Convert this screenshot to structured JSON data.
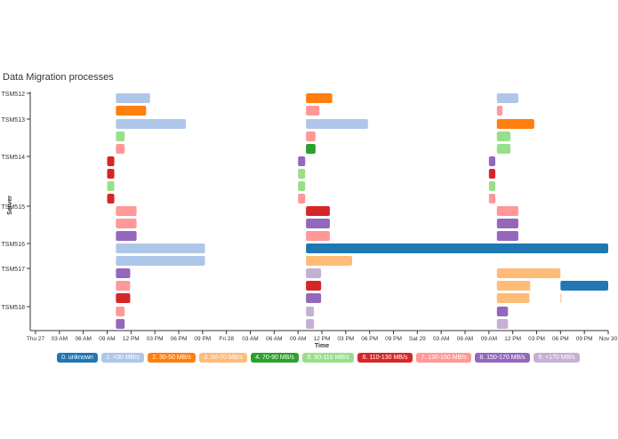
{
  "title": "Data Migration processes",
  "chart_data": {
    "type": "gantt",
    "title": "Data Migration processes",
    "xlabel": "Time",
    "ylabel": "Server",
    "x_ticks": [
      "Thu 27",
      "03 AM",
      "06 AM",
      "09 AM",
      "12 PM",
      "03 PM",
      "06 PM",
      "09 PM",
      "Fri 28",
      "03 AM",
      "06 AM",
      "09 AM",
      "12 PM",
      "03 PM",
      "06 PM",
      "09 PM",
      "Sat 29",
      "03 AM",
      "06 AM",
      "09 AM",
      "12 PM",
      "03 PM",
      "06 PM",
      "09 PM",
      "Nov 30"
    ],
    "x_range_hours": [
      0,
      72
    ],
    "servers": [
      "TSM512",
      "TSM513",
      "TSM514",
      "TSM515",
      "TSM516",
      "TSM517",
      "TSM518"
    ],
    "legend": [
      {
        "label": "0. unknown",
        "color": "#1f77b4"
      },
      {
        "label": "1. <30 MB/s",
        "color": "#aec7e8"
      },
      {
        "label": "2. 30-50 MB/s",
        "color": "#ff7f0e"
      },
      {
        "label": "3. 50-70 MB/s",
        "color": "#ffbb78"
      },
      {
        "label": "4. 70-90 MB/s",
        "color": "#2ca02c"
      },
      {
        "label": "5. 90-110 MB/s",
        "color": "#98df8a"
      },
      {
        "label": "6. 110-130 MB/s",
        "color": "#d62728"
      },
      {
        "label": "7. 130-150 MB/s",
        "color": "#ff9896"
      },
      {
        "label": "8. 150-170 MB/s",
        "color": "#9467bd"
      },
      {
        "label": "9. +170 MB/s",
        "color": "#c5b0d5"
      }
    ],
    "tasks": [
      {
        "server": "TSM512",
        "lane": 0,
        "start": 10.1,
        "end": 14.4,
        "cat": 1
      },
      {
        "server": "TSM512",
        "lane": 1,
        "start": 10.1,
        "end": 13.9,
        "cat": 2
      },
      {
        "server": "TSM512",
        "lane": 0,
        "start": 34.0,
        "end": 37.3,
        "cat": 2
      },
      {
        "server": "TSM512",
        "lane": 1,
        "start": 34.0,
        "end": 35.7,
        "cat": 7
      },
      {
        "server": "TSM512",
        "lane": 0,
        "start": 58.0,
        "end": 60.7,
        "cat": 1
      },
      {
        "server": "TSM512",
        "lane": 1,
        "start": 58.0,
        "end": 58.7,
        "cat": 7
      },
      {
        "server": "TSM513",
        "lane": 0,
        "start": 10.1,
        "end": 18.9,
        "cat": 1
      },
      {
        "server": "TSM513",
        "lane": 1,
        "start": 10.1,
        "end": 11.2,
        "cat": 5
      },
      {
        "server": "TSM513",
        "lane": 2,
        "start": 10.1,
        "end": 11.2,
        "cat": 7
      },
      {
        "server": "TSM513",
        "lane": 0,
        "start": 34.0,
        "end": 41.8,
        "cat": 1
      },
      {
        "server": "TSM513",
        "lane": 1,
        "start": 34.0,
        "end": 35.2,
        "cat": 7
      },
      {
        "server": "TSM513",
        "lane": 2,
        "start": 34.0,
        "end": 35.2,
        "cat": 4
      },
      {
        "server": "TSM513",
        "lane": 0,
        "start": 58.0,
        "end": 62.7,
        "cat": 2
      },
      {
        "server": "TSM513",
        "lane": 1,
        "start": 58.0,
        "end": 59.7,
        "cat": 5
      },
      {
        "server": "TSM513",
        "lane": 2,
        "start": 58.0,
        "end": 59.7,
        "cat": 5
      },
      {
        "server": "TSM514",
        "lane": 0,
        "start": 9.0,
        "end": 9.9,
        "cat": 6
      },
      {
        "server": "TSM514",
        "lane": 1,
        "start": 9.0,
        "end": 9.9,
        "cat": 6
      },
      {
        "server": "TSM514",
        "lane": 2,
        "start": 9.0,
        "end": 9.9,
        "cat": 5
      },
      {
        "server": "TSM514",
        "lane": 3,
        "start": 9.0,
        "end": 9.9,
        "cat": 6
      },
      {
        "server": "TSM514",
        "lane": 0,
        "start": 33.0,
        "end": 33.9,
        "cat": 8
      },
      {
        "server": "TSM514",
        "lane": 1,
        "start": 33.0,
        "end": 33.9,
        "cat": 5
      },
      {
        "server": "TSM514",
        "lane": 2,
        "start": 33.0,
        "end": 33.9,
        "cat": 5
      },
      {
        "server": "TSM514",
        "lane": 3,
        "start": 33.0,
        "end": 33.9,
        "cat": 7
      },
      {
        "server": "TSM514",
        "lane": 0,
        "start": 57.0,
        "end": 57.8,
        "cat": 8
      },
      {
        "server": "TSM514",
        "lane": 1,
        "start": 57.0,
        "end": 57.8,
        "cat": 6
      },
      {
        "server": "TSM514",
        "lane": 2,
        "start": 57.0,
        "end": 57.8,
        "cat": 5
      },
      {
        "server": "TSM514",
        "lane": 3,
        "start": 57.0,
        "end": 57.8,
        "cat": 7
      },
      {
        "server": "TSM515",
        "lane": 0,
        "start": 10.1,
        "end": 12.7,
        "cat": 7
      },
      {
        "server": "TSM515",
        "lane": 1,
        "start": 10.1,
        "end": 12.7,
        "cat": 7
      },
      {
        "server": "TSM515",
        "lane": 2,
        "start": 10.1,
        "end": 12.7,
        "cat": 8
      },
      {
        "server": "TSM515",
        "lane": 0,
        "start": 34.0,
        "end": 37.0,
        "cat": 6
      },
      {
        "server": "TSM515",
        "lane": 1,
        "start": 34.0,
        "end": 37.0,
        "cat": 8
      },
      {
        "server": "TSM515",
        "lane": 2,
        "start": 34.0,
        "end": 37.0,
        "cat": 7
      },
      {
        "server": "TSM515",
        "lane": 0,
        "start": 58.0,
        "end": 60.7,
        "cat": 7
      },
      {
        "server": "TSM515",
        "lane": 1,
        "start": 58.0,
        "end": 60.7,
        "cat": 8
      },
      {
        "server": "TSM515",
        "lane": 2,
        "start": 58.0,
        "end": 60.7,
        "cat": 8
      },
      {
        "server": "TSM516",
        "lane": 0,
        "start": 10.1,
        "end": 21.3,
        "cat": 1
      },
      {
        "server": "TSM516",
        "lane": 1,
        "start": 10.1,
        "end": 21.3,
        "cat": 1
      },
      {
        "server": "TSM516",
        "lane": 0,
        "start": 34.0,
        "end": 72.0,
        "cat": 0
      },
      {
        "server": "TSM516",
        "lane": 1,
        "start": 34.0,
        "end": 39.8,
        "cat": 3
      },
      {
        "server": "TSM517",
        "lane": 0,
        "start": 10.1,
        "end": 11.9,
        "cat": 8
      },
      {
        "server": "TSM517",
        "lane": 1,
        "start": 10.1,
        "end": 11.9,
        "cat": 7
      },
      {
        "server": "TSM517",
        "lane": 2,
        "start": 10.1,
        "end": 11.9,
        "cat": 6
      },
      {
        "server": "TSM517",
        "lane": 0,
        "start": 34.0,
        "end": 35.9,
        "cat": 9
      },
      {
        "server": "TSM517",
        "lane": 1,
        "start": 34.0,
        "end": 35.9,
        "cat": 6
      },
      {
        "server": "TSM517",
        "lane": 2,
        "start": 34.0,
        "end": 35.9,
        "cat": 8
      },
      {
        "server": "TSM517",
        "lane": 0,
        "start": 58.0,
        "end": 66.0,
        "cat": 3
      },
      {
        "server": "TSM517",
        "lane": 1,
        "start": 58.0,
        "end": 62.2,
        "cat": 3
      },
      {
        "server": "TSM517",
        "lane": 1,
        "start": 66.0,
        "end": 72.0,
        "cat": 0
      },
      {
        "server": "TSM517",
        "lane": 2,
        "start": 58.0,
        "end": 62.1,
        "cat": 3
      },
      {
        "server": "TSM517",
        "lane": 2,
        "start": 66.0,
        "end": 66.1,
        "cat": 3
      },
      {
        "server": "TSM518",
        "lane": 0,
        "start": 10.1,
        "end": 11.2,
        "cat": 7
      },
      {
        "server": "TSM518",
        "lane": 1,
        "start": 10.1,
        "end": 11.2,
        "cat": 8
      },
      {
        "server": "TSM518",
        "lane": 0,
        "start": 34.0,
        "end": 35.0,
        "cat": 9
      },
      {
        "server": "TSM518",
        "lane": 1,
        "start": 34.0,
        "end": 35.0,
        "cat": 9
      },
      {
        "server": "TSM518",
        "lane": 0,
        "start": 58.0,
        "end": 59.4,
        "cat": 8
      },
      {
        "server": "TSM518",
        "lane": 1,
        "start": 58.0,
        "end": 59.4,
        "cat": 9
      }
    ]
  }
}
